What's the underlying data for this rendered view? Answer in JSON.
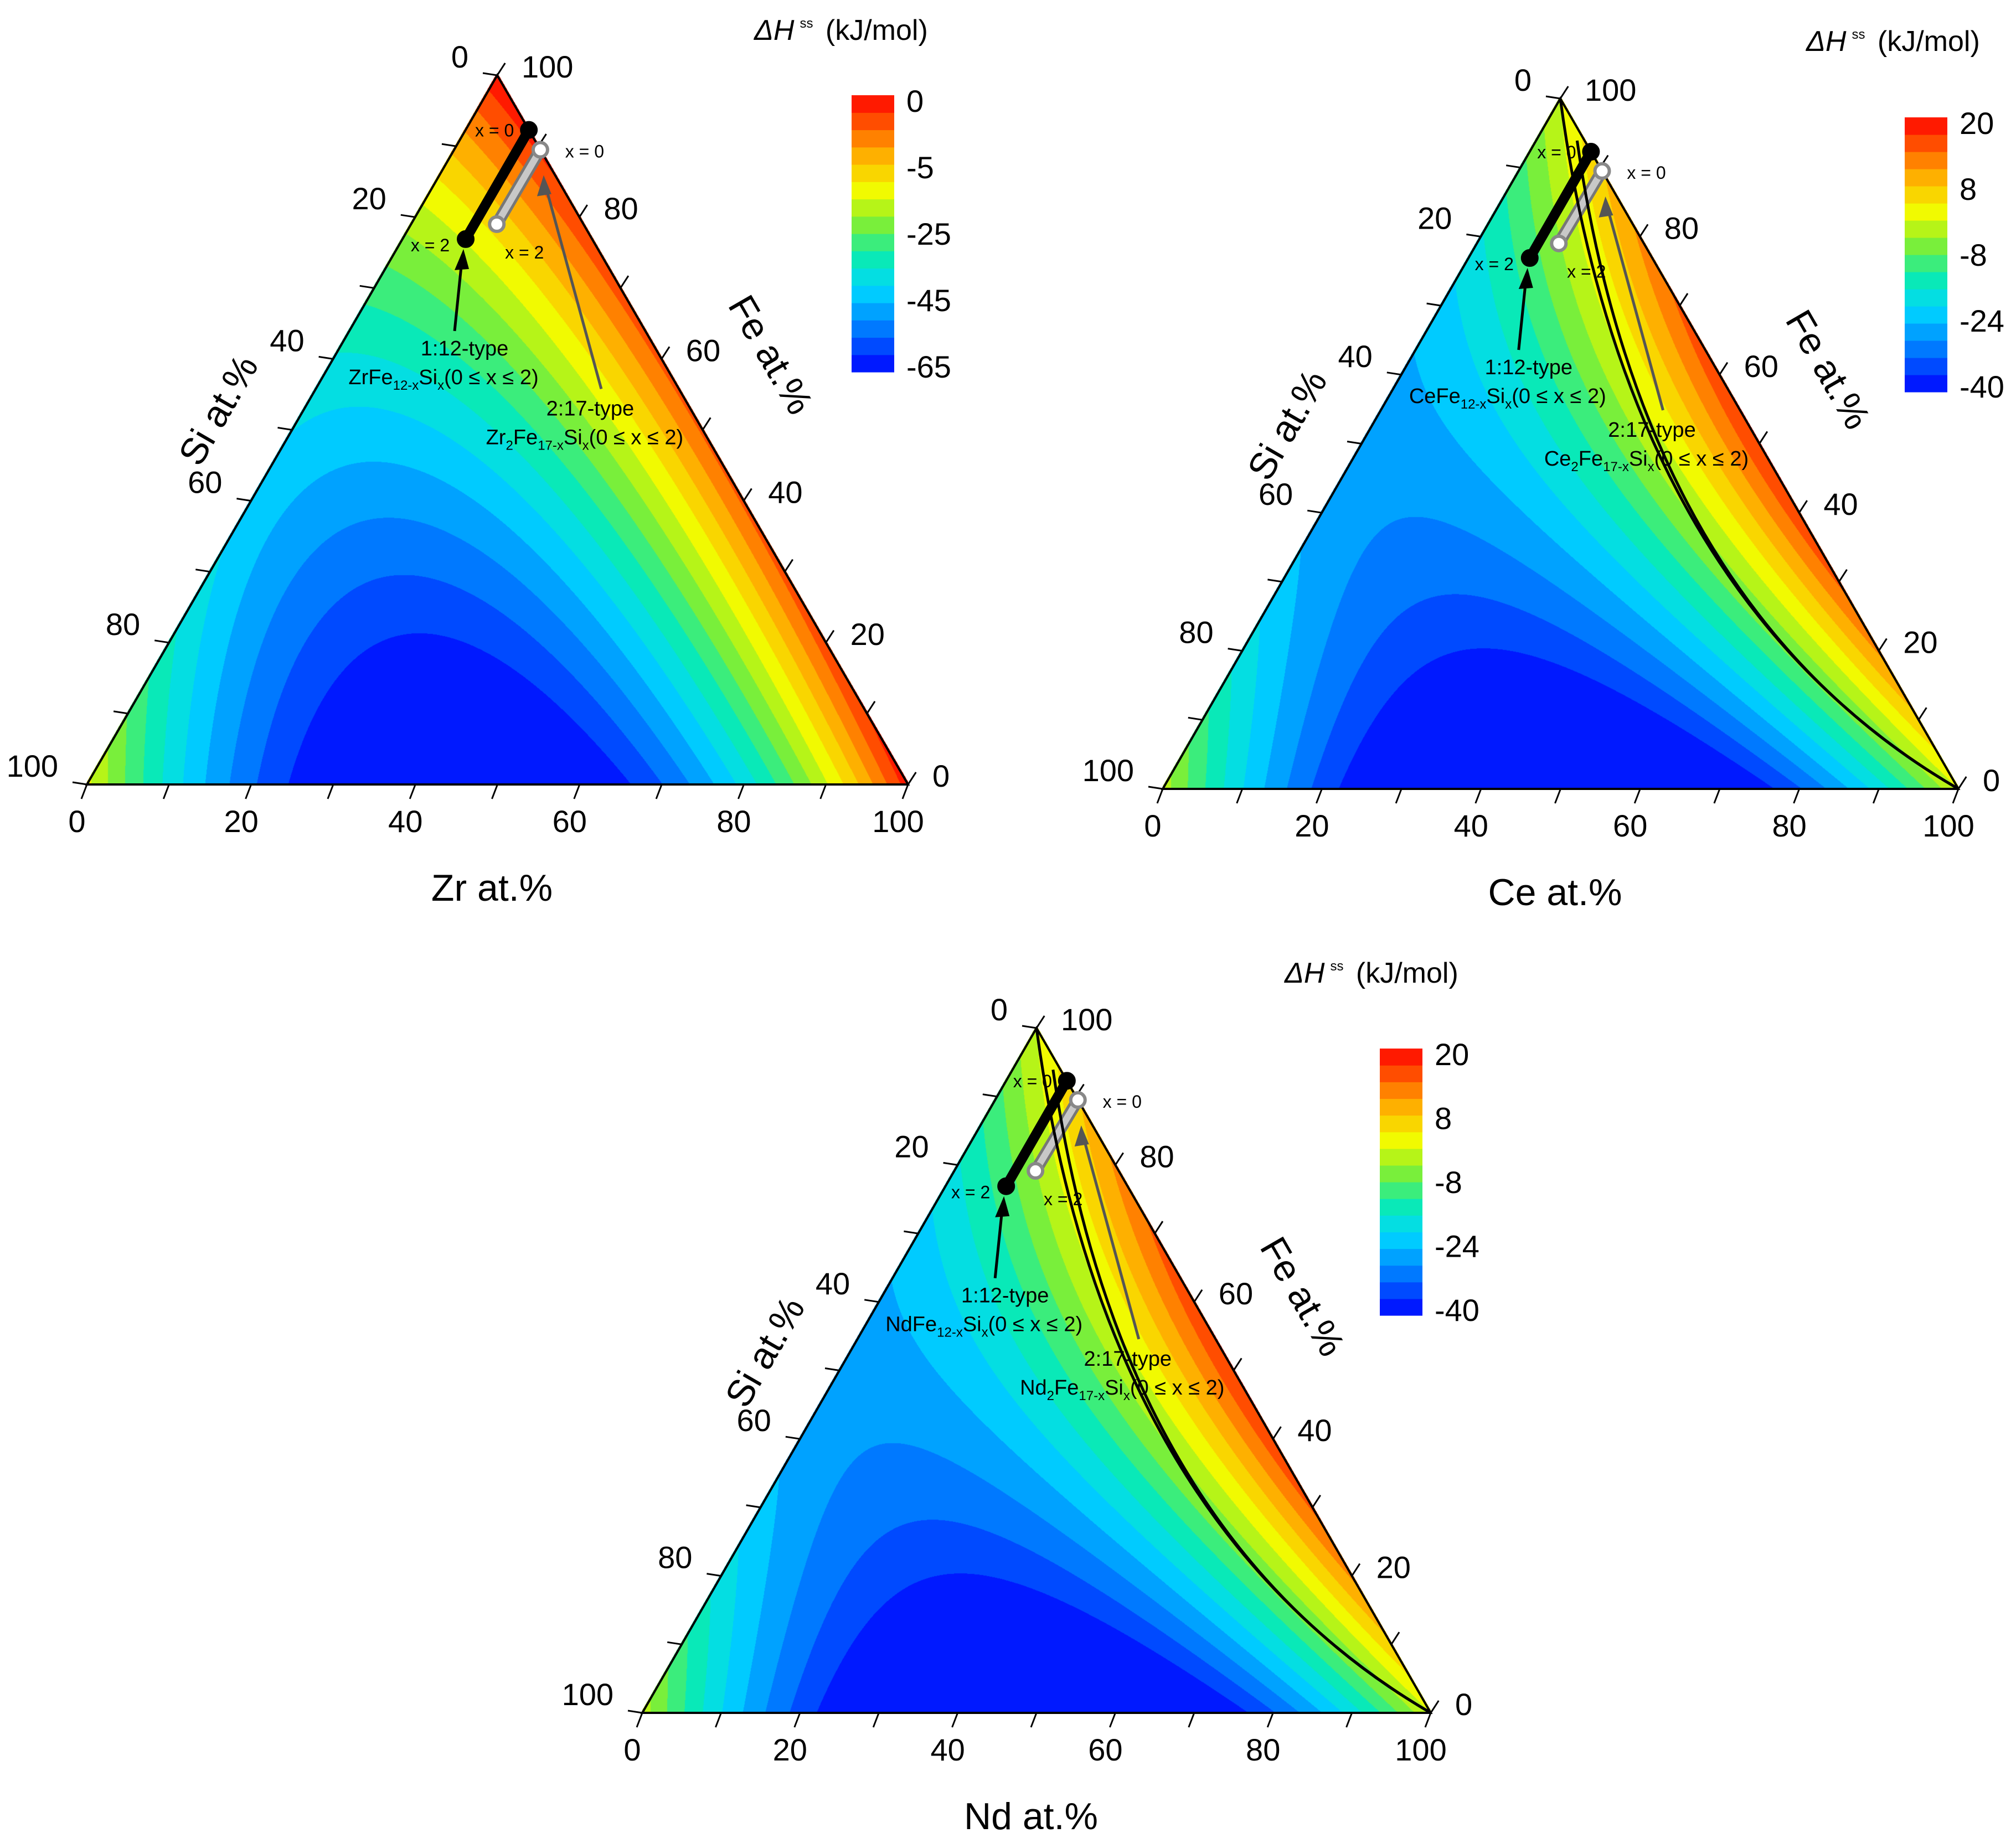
{
  "chart_data": [
    {
      "type": "ternary-contour",
      "panel": "Zr-Fe-Si",
      "element": "Zr",
      "axis_labels": {
        "bottom": "Zr at.%",
        "left": "Si at.%",
        "right": "Fe at.%"
      },
      "ticks": {
        "bottom": [
          "0",
          "20",
          "40",
          "60",
          "80",
          "100"
        ],
        "left": [
          "0",
          "20",
          "40",
          "60",
          "80",
          "100"
        ],
        "right": [
          "100",
          "80",
          "60",
          "40",
          "20",
          "0"
        ]
      },
      "colorbar": {
        "title_symbol": "ΔH",
        "title_sup": "ss",
        "title_unit": "(kJ/mol)",
        "labels": [
          "0",
          "-5",
          "-25",
          "-45",
          "-65"
        ],
        "range": [
          -70,
          0
        ]
      },
      "contour_model": {
        "vertex_fe": -1,
        "vertex_si": -25,
        "vertex_m": -2,
        "w_fe_si": -140,
        "w_fe_m": -25,
        "w_m_si": -250
      },
      "compound_1_12": {
        "line": [
          [
            0.077,
            0.923,
            0.0
          ],
          [
            0.077,
            0.769,
            0.154
          ]
        ],
        "start_label": "x = 0",
        "end_label": "x = 2",
        "type_label": "1:12-type",
        "formula": [
          "ZrFe",
          "12-x",
          "Si",
          "x",
          "(0 ≤ x ≤ 2)"
        ]
      },
      "compound_2_17": {
        "line": [
          [
            0.105,
            0.895,
            0.0
          ],
          [
            0.105,
            0.789,
            0.105
          ]
        ],
        "start_label": "x = 0",
        "end_label": "x = 2",
        "type_label": "2:17-type",
        "formula": [
          "Zr",
          "2",
          "Fe",
          "17-x",
          "Si",
          "x",
          "(0 ≤ x ≤ 2)"
        ]
      }
    },
    {
      "type": "ternary-contour",
      "panel": "Ce-Fe-Si",
      "element": "Ce",
      "axis_labels": {
        "bottom": "Ce at.%",
        "left": "Si at.%",
        "right": "Fe at.%"
      },
      "ticks": {
        "bottom": [
          "0",
          "20",
          "40",
          "60",
          "80",
          "100"
        ],
        "left": [
          "0",
          "20",
          "40",
          "60",
          "80",
          "100"
        ],
        "right": [
          "100",
          "80",
          "60",
          "40",
          "20",
          "0"
        ]
      },
      "colorbar": {
        "title_symbol": "ΔH",
        "title_sup": "ss",
        "title_unit": "(kJ/mol)",
        "labels": [
          "20",
          "8",
          "-8",
          "-24",
          "-40"
        ],
        "range": [
          -40,
          24
        ]
      },
      "contour_model": {
        "vertex_fe": 0,
        "vertex_si": -2,
        "vertex_m": 0,
        "w_fe_si": -100,
        "w_fe_m": 80,
        "w_m_si": -200
      },
      "compound_1_12": {
        "line": [
          [
            0.077,
            0.923,
            0.0
          ],
          [
            0.077,
            0.769,
            0.154
          ]
        ],
        "start_label": "x = 0",
        "end_label": "x = 2",
        "type_label": "1:12-type",
        "formula": [
          "CeFe",
          "12-x",
          "Si",
          "x",
          "(0 ≤ x ≤ 2)"
        ]
      },
      "compound_2_17": {
        "line": [
          [
            0.105,
            0.895,
            0.0
          ],
          [
            0.105,
            0.789,
            0.105
          ]
        ],
        "start_label": "x = 0",
        "end_label": "x = 2",
        "type_label": "2:17-type",
        "formula": [
          "Ce",
          "2",
          "Fe",
          "17-x",
          "Si",
          "x",
          "(0 ≤ x ≤ 2)"
        ]
      }
    },
    {
      "type": "ternary-contour",
      "panel": "Nd-Fe-Si",
      "element": "Nd",
      "axis_labels": {
        "bottom": "Nd at.%",
        "left": "Si at.%",
        "right": "Fe at.%"
      },
      "ticks": {
        "bottom": [
          "0",
          "20",
          "40",
          "60",
          "80",
          "100"
        ],
        "left": [
          "0",
          "20",
          "40",
          "60",
          "80",
          "100"
        ],
        "right": [
          "100",
          "80",
          "60",
          "40",
          "20",
          "0"
        ]
      },
      "colorbar": {
        "title_symbol": "ΔH",
        "title_sup": "ss",
        "title_unit": "(kJ/mol)",
        "labels": [
          "20",
          "8",
          "-8",
          "-24",
          "-40"
        ],
        "range": [
          -40,
          24
        ]
      },
      "contour_model": {
        "vertex_fe": 0,
        "vertex_si": -2,
        "vertex_m": 0,
        "w_fe_si": -100,
        "w_fe_m": 80,
        "w_m_si": -200
      },
      "compound_1_12": {
        "line": [
          [
            0.077,
            0.923,
            0.0
          ],
          [
            0.077,
            0.769,
            0.154
          ]
        ],
        "start_label": "x = 0",
        "end_label": "x = 2",
        "type_label": "1:12-type",
        "formula": [
          "NdFe",
          "12-x",
          "Si",
          "x",
          "(0 ≤ x ≤ 2)"
        ]
      },
      "compound_2_17": {
        "line": [
          [
            0.105,
            0.895,
            0.0
          ],
          [
            0.105,
            0.789,
            0.105
          ]
        ],
        "start_label": "x = 0",
        "end_label": "x = 2",
        "type_label": "2:17-type",
        "formula": [
          "Nd",
          "2",
          "Fe",
          "17-x",
          "Si",
          "x",
          "(0 ≤ x ≤ 2)"
        ]
      }
    }
  ]
}
